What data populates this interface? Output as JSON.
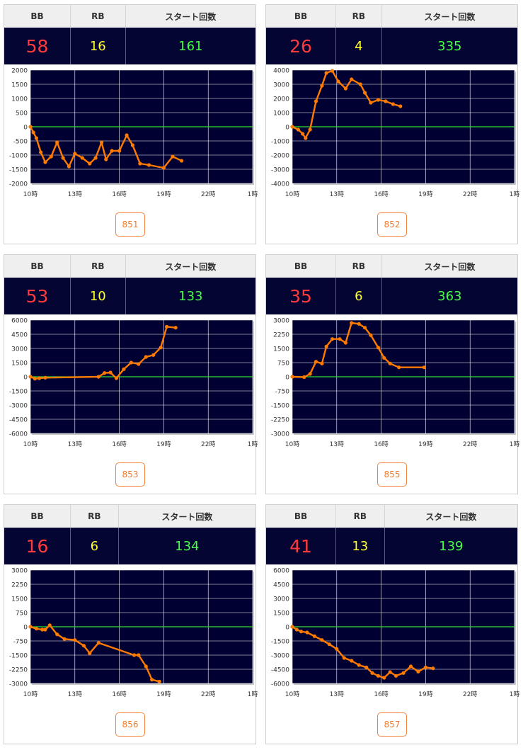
{
  "headers": {
    "bb": "BB",
    "rb": "RB",
    "start": "スタート回数"
  },
  "colors": {
    "bb": "#ff3a3a",
    "rb": "#ffff2e",
    "start": "#44ff44",
    "line": "#ff7a00",
    "plot_bg": "#000033",
    "zero_line": "#33dd33"
  },
  "x_ticks": [
    "10時",
    "13時",
    "16時",
    "19時",
    "22時",
    "1時"
  ],
  "panels": [
    {
      "bb": "58",
      "rb": "16",
      "start": "161",
      "machine": "851",
      "chart_data": {
        "type": "line",
        "x_unit": "hour",
        "xlim": [
          10,
          25
        ],
        "ylim": [
          -2000,
          2000
        ],
        "y_ticks": [
          "2000",
          "1500",
          "1000",
          "500",
          "0",
          "-500",
          "-1000",
          "-1500",
          "-2000"
        ],
        "points": [
          [
            10.0,
            0
          ],
          [
            10.2,
            -200
          ],
          [
            10.4,
            -400
          ],
          [
            10.7,
            -900
          ],
          [
            11.0,
            -1250
          ],
          [
            11.4,
            -1050
          ],
          [
            11.8,
            -550
          ],
          [
            12.2,
            -1100
          ],
          [
            12.6,
            -1400
          ],
          [
            13.0,
            -950
          ],
          [
            13.5,
            -1100
          ],
          [
            14.0,
            -1300
          ],
          [
            14.4,
            -1100
          ],
          [
            14.8,
            -550
          ],
          [
            15.1,
            -1150
          ],
          [
            15.5,
            -850
          ],
          [
            16.0,
            -850
          ],
          [
            16.5,
            -300
          ],
          [
            16.9,
            -650
          ],
          [
            17.4,
            -1300
          ],
          [
            18.0,
            -1350
          ],
          [
            19.0,
            -1450
          ],
          [
            19.6,
            -1050
          ],
          [
            20.2,
            -1200
          ]
        ]
      }
    },
    {
      "bb": "26",
      "rb": "4",
      "start": "335",
      "machine": "852",
      "chart_data": {
        "type": "line",
        "x_unit": "hour",
        "xlim": [
          10,
          25
        ],
        "ylim": [
          -4000,
          4000
        ],
        "y_ticks": [
          "4000",
          "3000",
          "2000",
          "1000",
          "0",
          "-1000",
          "-2000",
          "-3000",
          "-4000"
        ],
        "points": [
          [
            10.0,
            0
          ],
          [
            10.4,
            -200
          ],
          [
            10.7,
            -500
          ],
          [
            10.9,
            -800
          ],
          [
            11.2,
            -200
          ],
          [
            11.6,
            1800
          ],
          [
            12.0,
            2900
          ],
          [
            12.3,
            3800
          ],
          [
            12.7,
            3950
          ],
          [
            13.1,
            3200
          ],
          [
            13.6,
            2700
          ],
          [
            14.0,
            3350
          ],
          [
            14.6,
            3000
          ],
          [
            14.9,
            2400
          ],
          [
            15.3,
            1700
          ],
          [
            15.8,
            1900
          ],
          [
            16.3,
            1800
          ],
          [
            16.8,
            1600
          ],
          [
            17.3,
            1450
          ]
        ]
      }
    },
    {
      "bb": "53",
      "rb": "10",
      "start": "133",
      "machine": "853",
      "chart_data": {
        "type": "line",
        "x_unit": "hour",
        "xlim": [
          10,
          25
        ],
        "ylim": [
          -6000,
          6000
        ],
        "y_ticks": [
          "6000",
          "4500",
          "3000",
          "1500",
          "0",
          "-1500",
          "-3000",
          "-4500",
          "-6000"
        ],
        "points": [
          [
            10.0,
            0
          ],
          [
            10.3,
            -200
          ],
          [
            10.6,
            -150
          ],
          [
            11.0,
            -100
          ],
          [
            14.6,
            0
          ],
          [
            15.0,
            400
          ],
          [
            15.4,
            450
          ],
          [
            15.8,
            -150
          ],
          [
            16.3,
            800
          ],
          [
            16.8,
            1500
          ],
          [
            17.3,
            1350
          ],
          [
            17.8,
            2100
          ],
          [
            18.3,
            2300
          ],
          [
            18.8,
            3100
          ],
          [
            19.2,
            5300
          ],
          [
            19.8,
            5200
          ]
        ]
      }
    },
    {
      "bb": "35",
      "rb": "6",
      "start": "363",
      "machine": "855",
      "chart_data": {
        "type": "line",
        "x_unit": "hour",
        "xlim": [
          10,
          25
        ],
        "ylim": [
          -3000,
          3000
        ],
        "y_ticks": [
          "3000",
          "2250",
          "1500",
          "750",
          "0",
          "-750",
          "-1500",
          "-2250",
          "-3000"
        ],
        "points": [
          [
            10.0,
            0
          ],
          [
            10.8,
            -20
          ],
          [
            11.2,
            150
          ],
          [
            11.6,
            800
          ],
          [
            12.0,
            700
          ],
          [
            12.3,
            1600
          ],
          [
            12.7,
            2000
          ],
          [
            13.2,
            2000
          ],
          [
            13.6,
            1800
          ],
          [
            14.0,
            2850
          ],
          [
            14.5,
            2800
          ],
          [
            14.9,
            2600
          ],
          [
            15.3,
            2200
          ],
          [
            15.8,
            1550
          ],
          [
            16.2,
            1000
          ],
          [
            16.6,
            700
          ],
          [
            17.2,
            500
          ],
          [
            18.9,
            500
          ]
        ]
      }
    },
    {
      "bb": "16",
      "rb": "6",
      "start": "134",
      "machine": "856",
      "chart_data": {
        "type": "line",
        "x_unit": "hour",
        "xlim": [
          10,
          25
        ],
        "ylim": [
          -3000,
          3000
        ],
        "y_ticks": [
          "3000",
          "2250",
          "1500",
          "750",
          "0",
          "-750",
          "-1500",
          "-2250",
          "-3000"
        ],
        "points": [
          [
            10.0,
            0
          ],
          [
            10.4,
            -100
          ],
          [
            10.8,
            -150
          ],
          [
            11.0,
            -150
          ],
          [
            11.3,
            80
          ],
          [
            11.8,
            -400
          ],
          [
            12.3,
            -650
          ],
          [
            13.0,
            -700
          ],
          [
            13.6,
            -1000
          ],
          [
            14.0,
            -1400
          ],
          [
            14.6,
            -850
          ],
          [
            17.0,
            -1500
          ],
          [
            17.3,
            -1500
          ],
          [
            17.8,
            -2100
          ],
          [
            18.2,
            -2800
          ],
          [
            18.7,
            -2900
          ]
        ]
      }
    },
    {
      "bb": "41",
      "rb": "13",
      "start": "139",
      "machine": "857",
      "chart_data": {
        "type": "line",
        "x_unit": "hour",
        "xlim": [
          10,
          25
        ],
        "ylim": [
          -6000,
          6000
        ],
        "y_ticks": [
          "6000",
          "4500",
          "3000",
          "1500",
          "0",
          "-1500",
          "-3000",
          "-4500",
          "-6000"
        ],
        "points": [
          [
            10.0,
            0
          ],
          [
            10.3,
            -300
          ],
          [
            10.6,
            -500
          ],
          [
            11.0,
            -600
          ],
          [
            11.5,
            -1000
          ],
          [
            12.0,
            -1400
          ],
          [
            12.5,
            -1850
          ],
          [
            13.0,
            -2350
          ],
          [
            13.5,
            -3300
          ],
          [
            14.0,
            -3600
          ],
          [
            14.5,
            -4050
          ],
          [
            15.0,
            -4300
          ],
          [
            15.4,
            -4900
          ],
          [
            15.8,
            -5200
          ],
          [
            16.2,
            -5400
          ],
          [
            16.6,
            -4800
          ],
          [
            17.0,
            -5200
          ],
          [
            17.5,
            -4900
          ],
          [
            18.0,
            -4200
          ],
          [
            18.5,
            -4750
          ],
          [
            19.0,
            -4300
          ],
          [
            19.5,
            -4400
          ]
        ]
      }
    }
  ]
}
